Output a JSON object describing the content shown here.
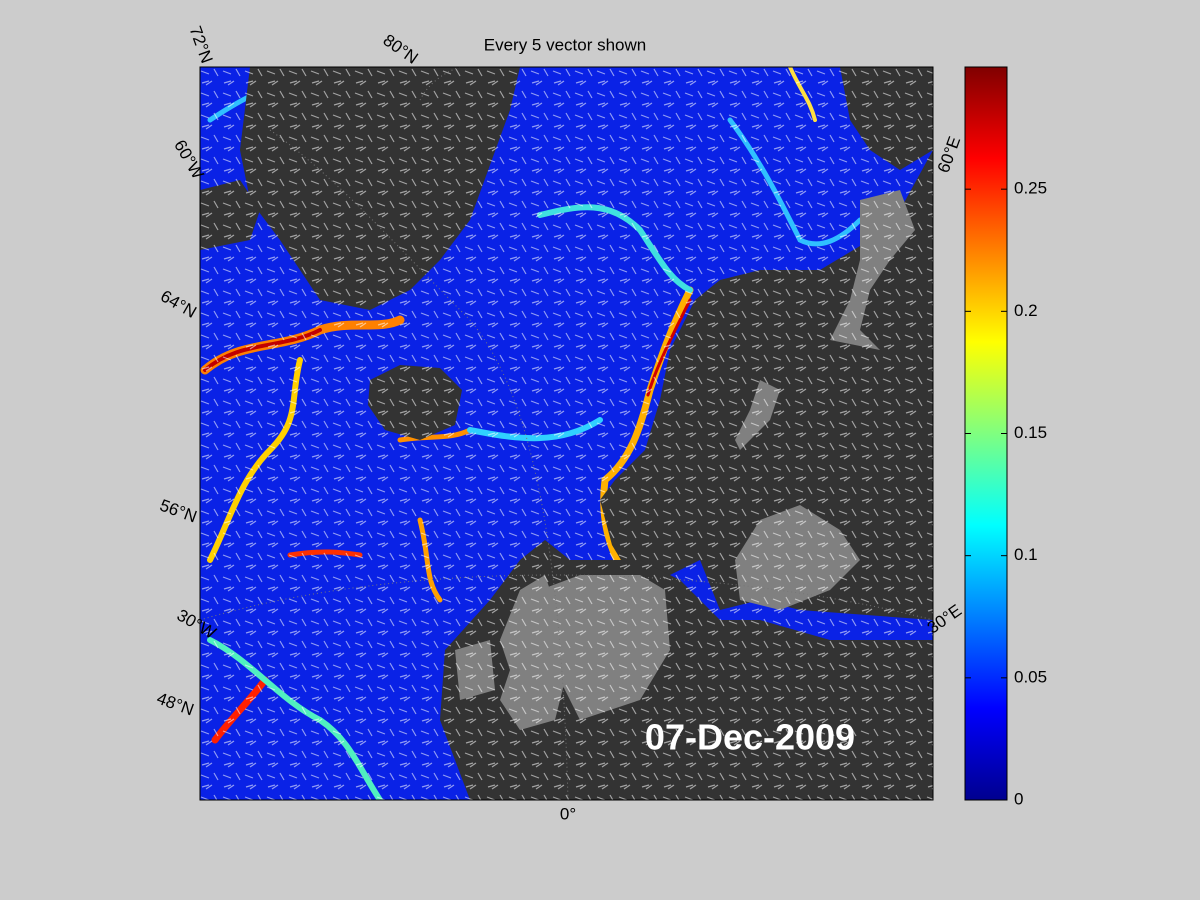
{
  "map": {
    "title": "Every 5 vector shown",
    "date": "07-Dec-2009",
    "grid_labels": [
      "72°N",
      "80°N",
      "60°W",
      "64°N",
      "56°N",
      "30°W",
      "48°N",
      "0°",
      "60°E",
      "30°E"
    ],
    "colorbar": {
      "lim": [
        0,
        0.3
      ],
      "ticks": [
        0,
        0.05,
        0.1,
        0.15,
        0.2,
        0.25
      ]
    }
  }
}
